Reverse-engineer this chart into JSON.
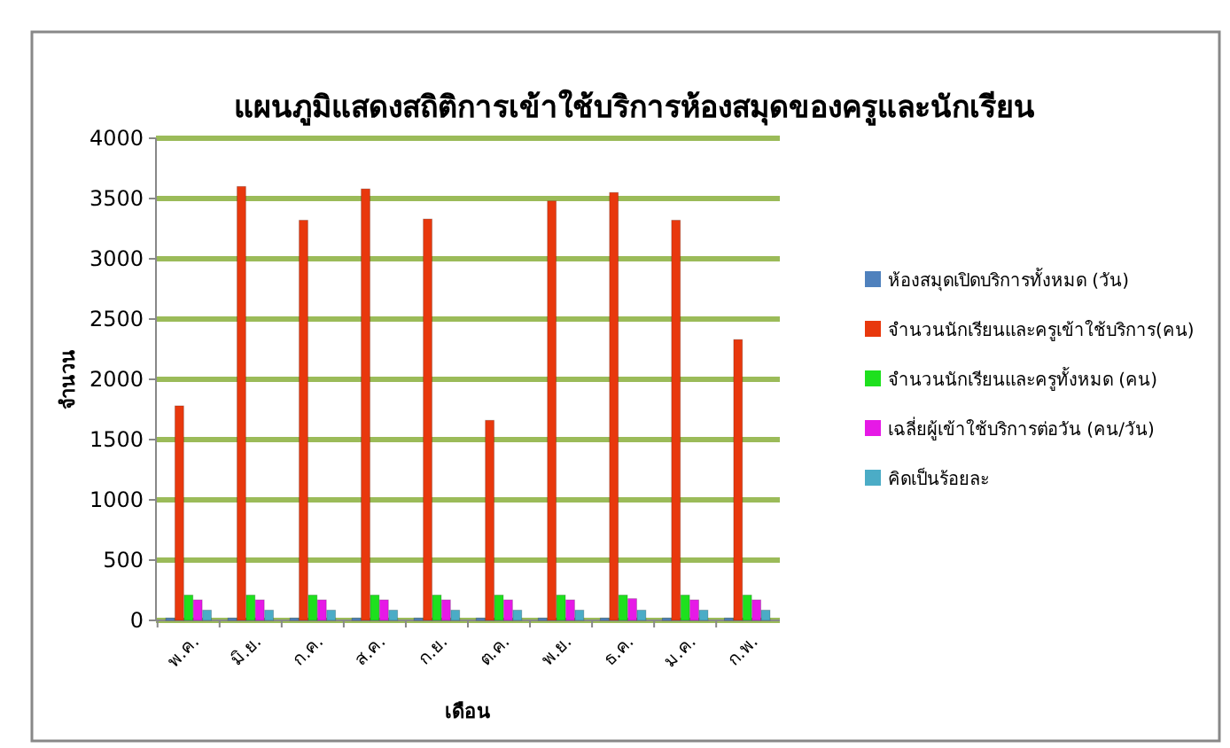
{
  "chart_data": {
    "type": "bar",
    "title": "แผนภูมิแสดงสถิติการเข้าใช้บริการห้องสมุดของครูและนักเรียน",
    "xlabel": "เดือน",
    "ylabel": "จำนวน",
    "categories": [
      "พ.ค.",
      "มิ.ย.",
      "ก.ค.",
      "ส.ค.",
      "ก.ย.",
      "ต.ค.",
      "พ.ย.",
      "ธ.ค.",
      "ม.ค.",
      "ก.พ."
    ],
    "series": [
      {
        "name": "ห้องสมุดเปิดบริการทั้งหมด (วัน)",
        "color": "#4f81bd",
        "values": [
          20,
          20,
          20,
          20,
          20,
          20,
          20,
          20,
          20,
          20
        ]
      },
      {
        "name": "จำนวนนักเรียนและครูเข้าใช้บริการ(คน)",
        "color": "#e8380d",
        "values": [
          1780,
          3600,
          3320,
          3580,
          3330,
          1660,
          3480,
          3550,
          3320,
          2330
        ]
      },
      {
        "name": "จำนวนนักเรียนและครูทั้งหมด (คน)",
        "color": "#1ee01e",
        "values": [
          210,
          210,
          210,
          210,
          210,
          210,
          210,
          210,
          210,
          210
        ]
      },
      {
        "name": "เฉลี่ยผู้เข้าใช้บริการต่อวัน (คน/วัน)",
        "color": "#e619e6",
        "values": [
          170,
          170,
          170,
          170,
          170,
          170,
          170,
          180,
          170,
          170
        ]
      },
      {
        "name": "คิดเป็นร้อยละ",
        "color": "#4bacc6",
        "values": [
          85,
          85,
          85,
          85,
          85,
          85,
          85,
          85,
          85,
          85
        ]
      }
    ],
    "ylim": [
      0,
      4000
    ],
    "yticks": [
      0,
      500,
      1000,
      1500,
      2000,
      2500,
      3000,
      3500,
      4000
    ],
    "grid": "y",
    "legend": "right"
  }
}
